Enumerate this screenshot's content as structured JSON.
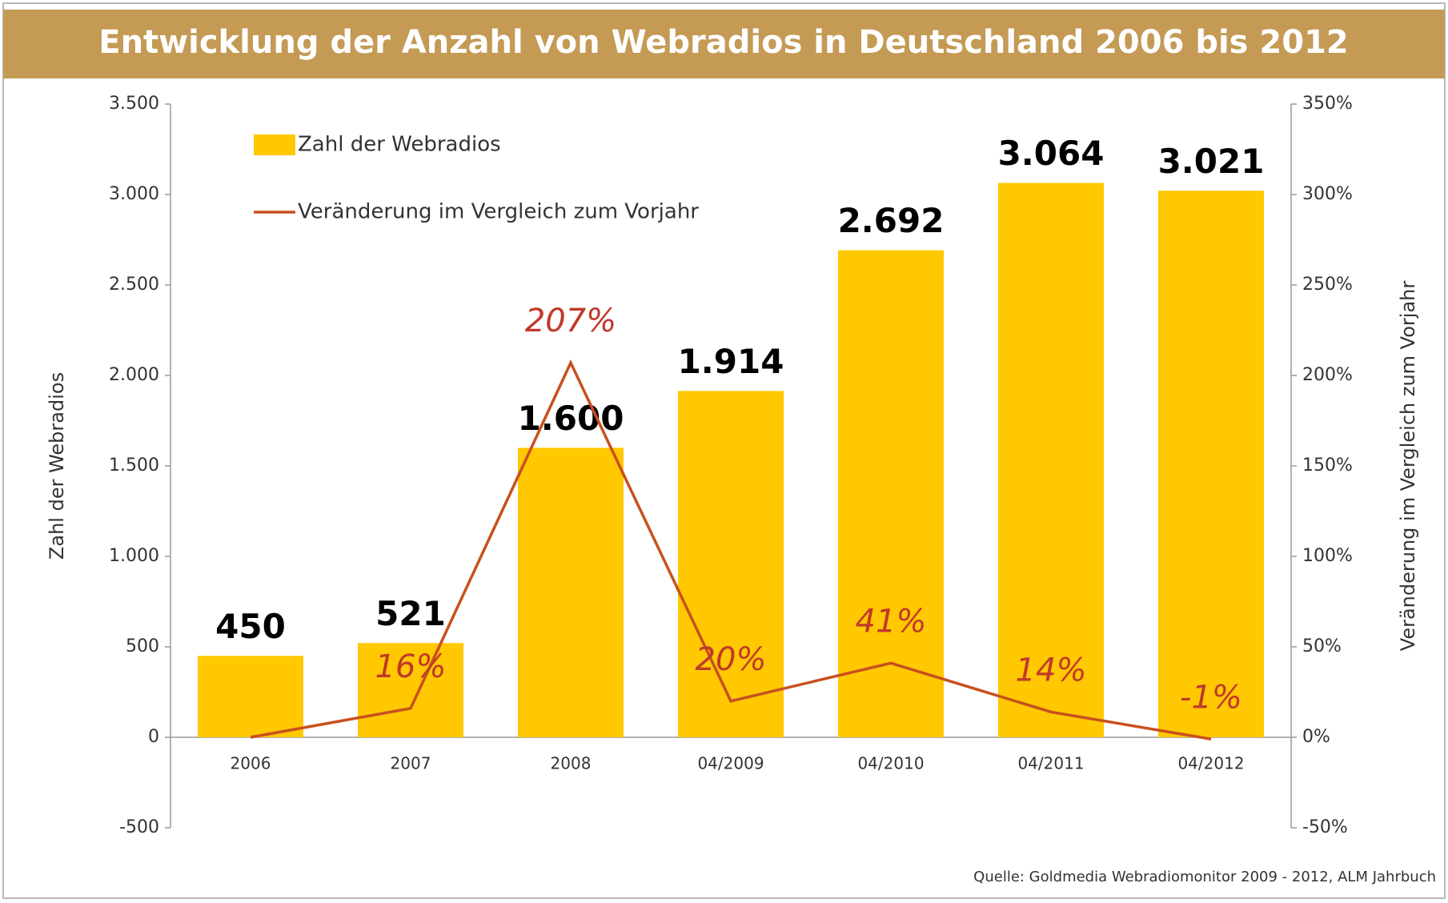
{
  "chart_data": {
    "type": "bar",
    "title": "Entwicklung der Anzahl von Webradios in Deutschland 2006 bis 2012",
    "ylabel": "Zahl der Webradios",
    "y2label": "Veränderung im Vergleich zum Vorjahr",
    "source": "Quelle: Goldmedia Webradiomonitor 2009 - 2012, ALM Jahrbuch",
    "categories": [
      "2006",
      "2007",
      "2008",
      "04/2009",
      "04/2010",
      "04/2011",
      "04/2012"
    ],
    "series": [
      {
        "name": "Zahl der Webradios",
        "type": "bar",
        "color": "#ffc800",
        "values": [
          450,
          521,
          1600,
          1914,
          2692,
          3064,
          3021
        ],
        "value_labels": [
          "450",
          "521",
          "1.600",
          "1.914",
          "2.692",
          "3.064",
          "3.021"
        ]
      },
      {
        "name": "Veränderung im Vergleich zum Vorjahr",
        "type": "line",
        "axis": "y2",
        "color": "#c8501e",
        "values": [
          0,
          16,
          207,
          20,
          41,
          14,
          -1
        ],
        "value_labels": [
          null,
          "16%",
          "207%",
          "20%",
          "41%",
          "14%",
          "-1%"
        ]
      }
    ],
    "ylim": [
      -500,
      3500
    ],
    "yticks": [
      -500,
      0,
      500,
      {
        "value": 1000,
        "label": "1.000"
      },
      {
        "value": 1500,
        "label": "1.500"
      },
      {
        "value": 2000,
        "label": "2.000"
      },
      {
        "value": 2500,
        "label": "2.500"
      },
      {
        "value": 3000,
        "label": "3.000"
      },
      {
        "value": 3500,
        "label": "3.500"
      }
    ],
    "y2lim": [
      -50,
      350
    ],
    "y2ticks": [
      {
        "value": -50,
        "label": "-50%"
      },
      {
        "value": 0,
        "label": "0%"
      },
      {
        "value": 50,
        "label": "50%"
      },
      {
        "value": 100,
        "label": "100%"
      },
      {
        "value": 150,
        "label": "150%"
      },
      {
        "value": 200,
        "label": "200%"
      },
      {
        "value": 250,
        "label": "250%"
      },
      {
        "value": 300,
        "label": "300%"
      },
      {
        "value": 350,
        "label": "350%"
      }
    ]
  }
}
